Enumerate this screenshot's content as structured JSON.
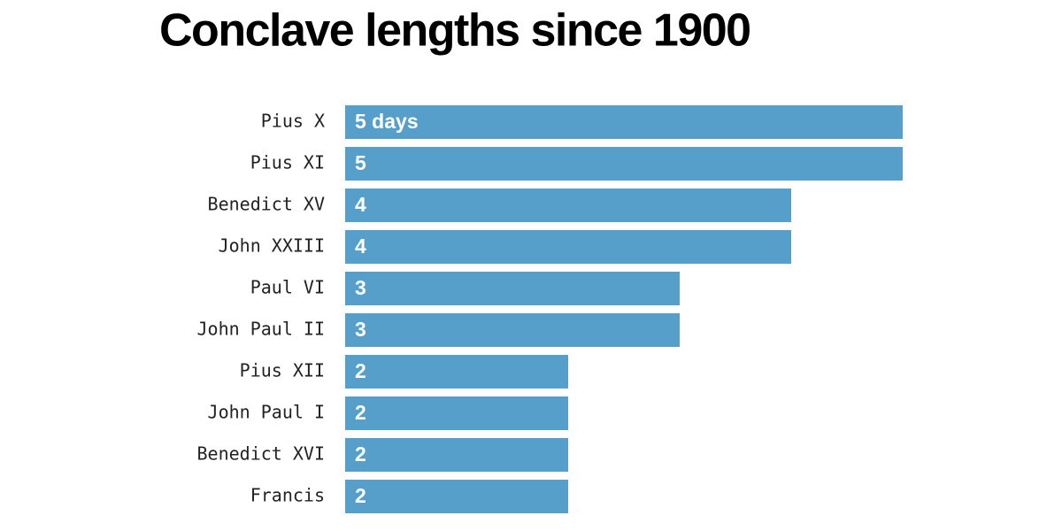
{
  "chart_data": {
    "type": "hbar",
    "title": "Conclave lengths since 1900",
    "categories": [
      "Pius X",
      "Pius XI",
      "Benedict XV",
      "John XXIII",
      "Paul VI",
      "John Paul II",
      "Pius XII",
      "John Paul I",
      "Benedict XVI",
      "Francis"
    ],
    "values": [
      5,
      5,
      4,
      4,
      3,
      3,
      2,
      2,
      2,
      2
    ],
    "value_labels": [
      "5 days",
      "5",
      "4",
      "4",
      "3",
      "3",
      "2",
      "2",
      "2",
      "2"
    ],
    "color": "#569fcb"
  }
}
